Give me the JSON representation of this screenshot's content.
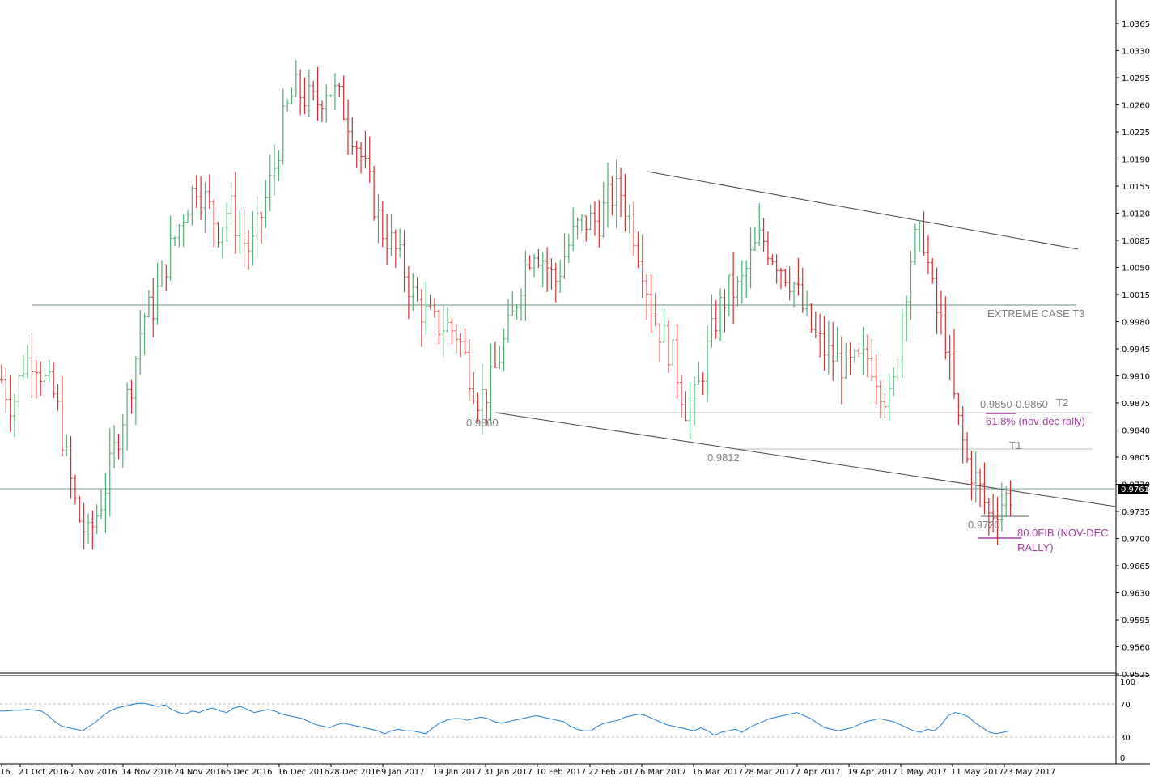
{
  "chart_data": {
    "type": "ohlc",
    "instrument": "",
    "price_axis": {
      "ticks": [
        "1.0365",
        "1.0330",
        "1.0295",
        "1.0260",
        "1.0225",
        "1.0190",
        "1.0155",
        "1.0120",
        "1.0085",
        "1.0050",
        "1.0015",
        "0.9980",
        "0.9945",
        "0.9910",
        "0.9875",
        "0.9840",
        "0.9805",
        "0.9770",
        "0.9735",
        "0.9700",
        "0.9665",
        "0.9630",
        "0.9595",
        "0.9560",
        "0.9525"
      ],
      "current_price": "0.9761",
      "range": [
        0.9512,
        1.0385
      ]
    },
    "x_axis_labels": [
      "16",
      "21 Oct 2016",
      "2 Nov 2016",
      "14 Nov 2016",
      "24 Nov 2016",
      "6 Dec 2016",
      "16 Dec 2016",
      "28 Dec 2016",
      "9 Jan 2017",
      "19 Jan 2017",
      "31 Jan 2017",
      "10 Feb 2017",
      "22 Feb 2017",
      "6 Mar 2017",
      "16 Mar 2017",
      "28 Mar 2017",
      "7 Apr 2017",
      "19 Apr 2017",
      "1 May 2017",
      "11 May 2017",
      "23 May 2017"
    ],
    "series_close_path": [
      0.9905,
      0.987,
      0.9925,
      0.9938,
      0.9902,
      0.988,
      0.98,
      0.973,
      0.97,
      0.974,
      0.979,
      0.985,
      0.9905,
      0.9985,
      1.0,
      1.005,
      1.009,
      1.013,
      1.016,
      1.013,
      1.01,
      1.013,
      1.009,
      1.007,
      1.012,
      1.017,
      1.024,
      1.028,
      1.027,
      1.026,
      1.0285,
      1.027,
      1.024,
      1.02,
      1.015,
      1.01,
      1.008,
      1.005,
      1.001,
      0.999,
      0.9975,
      0.9975,
      0.9965,
      0.992,
      0.988,
      0.9895,
      0.994,
      0.998,
      1.004,
      1.008,
      1.006,
      1.003,
      1.007,
      1.01,
      1.011,
      1.011,
      1.014,
      1.015,
      1.011,
      1.006,
      0.999,
      0.996,
      0.993,
      0.987,
      0.988,
      0.994,
      0.999,
      1.002,
      1.002,
      1.006,
      1.009,
      1.007,
      1.005,
      1.003,
      0.999,
      0.996,
      0.994,
      0.993,
      0.992,
      0.9925,
      0.9935,
      0.99,
      0.987,
      0.999,
      1.008,
      1.009,
      1.0,
      0.996,
      0.986,
      0.98,
      0.977,
      0.973,
      0.9745,
      0.9758
    ],
    "oscillator": {
      "ticks": [
        "100",
        "70",
        "30",
        "0"
      ],
      "levels": [
        70,
        30
      ],
      "values": [
        62,
        62,
        63,
        63,
        64,
        63,
        62,
        56,
        48,
        42,
        40,
        38,
        36,
        42,
        48,
        56,
        62,
        66,
        68,
        70,
        72,
        72,
        70,
        68,
        70,
        64,
        60,
        58,
        62,
        60,
        64,
        66,
        62,
        60,
        66,
        68,
        64,
        60,
        62,
        64,
        62,
        58,
        56,
        54,
        52,
        48,
        44,
        42,
        40,
        44,
        46,
        44,
        42,
        40,
        38,
        36,
        32,
        36,
        38,
        36,
        36,
        34,
        32,
        40,
        46,
        50,
        52,
        52,
        50,
        52,
        54,
        52,
        48,
        46,
        48,
        50,
        52,
        54,
        56,
        54,
        52,
        50,
        48,
        42,
        38,
        36,
        36,
        42,
        46,
        48,
        50,
        54,
        56,
        58,
        56,
        52,
        48,
        44,
        42,
        40,
        38,
        36,
        40,
        36,
        30,
        34,
        36,
        38,
        34,
        40,
        44,
        48,
        52,
        54,
        56,
        58,
        60,
        56,
        52,
        46,
        40,
        38,
        36,
        38,
        40,
        44,
        48,
        50,
        52,
        50,
        48,
        44,
        40,
        36,
        34,
        38,
        36,
        44,
        56,
        60,
        58,
        54,
        46,
        40,
        34,
        32,
        34,
        36
      ]
    },
    "annotations": {
      "extreme_case": "EXTREME CASE T3",
      "range_label": "0.9850-0.9860",
      "t2": "T2",
      "fib_61": "61.8% (nov-dec rally)",
      "t1": "T1",
      "low_0860": "0.9860",
      "low_0812": "0.9812",
      "low_0720": "0.9720",
      "fib_80_line1": "80.0FIB (NOV-DEC",
      "fib_80_line2": "RALLY)"
    },
    "colors": {
      "up": "#4caf73",
      "down": "#d32f2f",
      "annotation_gray": "#7f7f7f",
      "annotation_purple": "#a23ea2",
      "oscillator": "#1e7fd8",
      "price_label_bg": "#000000"
    }
  }
}
